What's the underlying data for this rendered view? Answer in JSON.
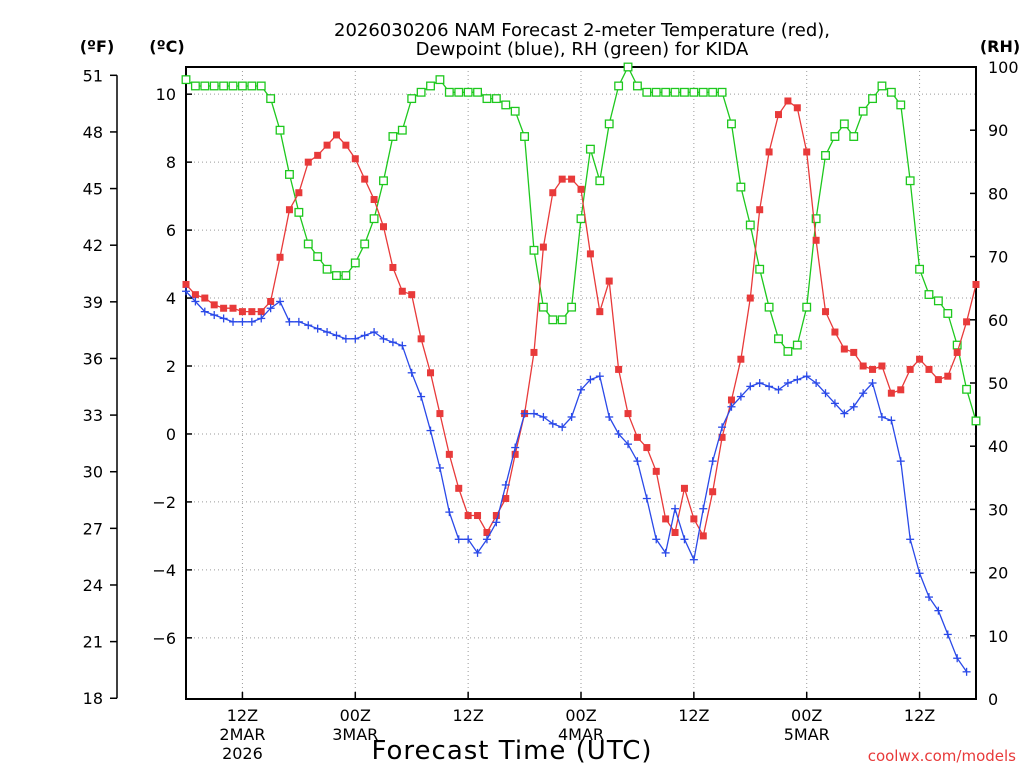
{
  "title": {
    "line1": "2026030206 NAM Forecast 2-meter Temperature (red),",
    "line2": "Dewpoint (blue), RH (green) for KIDA"
  },
  "unit_labels": {
    "f": "(ºF)",
    "c": "(ºC)",
    "rh": "(RH)"
  },
  "credit": "coolwx.com/models",
  "colors": {
    "temperature": "#e83a3a",
    "dewpoint": "#2a49e8",
    "rh": "#1ec81e"
  },
  "chart_data": {
    "type": "line",
    "title": "2026030206 NAM Forecast 2-meter Temperature (red), Dewpoint (blue), RH (green) for KIDA",
    "xlabel": "Forecast Time (UTC)",
    "x_unit": "hours since 2026-03-02 06Z",
    "xlim": [
      0,
      84
    ],
    "x_ticks": [
      {
        "x": 6,
        "label": "12Z",
        "sub": [
          "2MAR",
          "2026"
        ]
      },
      {
        "x": 18,
        "label": "00Z",
        "sub": [
          "3MAR"
        ]
      },
      {
        "x": 30,
        "label": "12Z",
        "sub": []
      },
      {
        "x": 42,
        "label": "00Z",
        "sub": [
          "4MAR"
        ]
      },
      {
        "x": 54,
        "label": "12Z",
        "sub": []
      },
      {
        "x": 66,
        "label": "00Z",
        "sub": [
          "5MAR"
        ]
      },
      {
        "x": 78,
        "label": "12Z",
        "sub": []
      }
    ],
    "y_left": {
      "unit": "°C",
      "lim": [
        -7.8,
        10.8
      ],
      "ticks": [
        -6,
        -4,
        -2,
        0,
        2,
        4,
        6,
        8,
        10
      ],
      "tick_labels": [
        "−6",
        "−4",
        "−2",
        "0",
        "2",
        "4",
        "6",
        "8",
        "10"
      ]
    },
    "y_far_left": {
      "unit": "°F",
      "ticks": [
        18,
        21,
        24,
        27,
        30,
        33,
        36,
        39,
        42,
        45,
        48,
        51
      ]
    },
    "y_right": {
      "unit": "RH %",
      "lim": [
        0,
        100
      ],
      "ticks": [
        0,
        10,
        20,
        30,
        40,
        50,
        60,
        70,
        80,
        90,
        100
      ]
    },
    "grid": true,
    "series": [
      {
        "name": "Temperature",
        "axis": "left",
        "marker": "filled-square",
        "values": [
          4.4,
          4.1,
          4.0,
          3.8,
          3.7,
          3.7,
          3.6,
          3.6,
          3.6,
          3.9,
          5.2,
          6.6,
          7.1,
          8.0,
          8.2,
          8.5,
          8.8,
          8.5,
          8.1,
          7.5,
          6.9,
          6.1,
          4.9,
          4.2,
          4.1,
          2.8,
          1.8,
          0.6,
          -0.6,
          -1.6,
          -2.4,
          -2.4,
          -2.9,
          -2.4,
          -1.9,
          -0.6,
          0.6,
          2.4,
          5.5,
          7.1,
          7.5,
          7.5,
          7.2,
          5.3,
          3.6,
          4.5,
          1.9,
          0.6,
          -0.1,
          -0.4,
          -1.1,
          -2.5,
          -2.9,
          -1.6,
          -2.5,
          -3.0,
          -1.7,
          -0.1,
          1.0,
          2.2,
          4.0,
          6.6,
          8.3,
          9.4,
          9.8,
          9.6,
          8.3,
          5.7,
          3.6,
          3.0,
          2.5,
          2.4,
          2.0,
          1.9,
          2.0,
          1.2,
          1.3,
          1.9,
          2.2,
          1.9,
          1.6,
          1.7,
          2.4,
          3.3,
          4.4
        ],
        "marker_every": 1
      },
      {
        "name": "Dewpoint",
        "axis": "left",
        "marker": "plus",
        "values": [
          4.2,
          3.9,
          3.6,
          3.5,
          3.4,
          3.3,
          3.3,
          3.3,
          3.4,
          3.7,
          3.9,
          3.3,
          3.3,
          3.2,
          3.1,
          3.0,
          2.9,
          2.8,
          2.8,
          2.9,
          3.0,
          2.8,
          2.7,
          2.6,
          1.8,
          1.1,
          0.1,
          -1.0,
          -2.3,
          -3.1,
          -3.1,
          -3.5,
          -3.1,
          -2.6,
          -1.5,
          -0.4,
          0.6,
          0.6,
          0.5,
          0.3,
          0.2,
          0.5,
          1.3,
          1.6,
          1.7,
          0.5,
          0.0,
          -0.3,
          -0.8,
          -1.9,
          -3.1,
          -3.5,
          -2.2,
          -3.1,
          -3.7,
          -2.2,
          -0.8,
          0.2,
          0.8,
          1.1,
          1.4,
          1.5,
          1.4,
          1.3,
          1.5,
          1.6,
          1.7,
          1.5,
          1.2,
          0.9,
          0.6,
          0.8,
          1.2,
          1.5,
          0.5,
          0.4,
          -0.8,
          -3.1,
          -4.1,
          -4.8,
          -5.2,
          -5.9,
          -6.6,
          -7.0
        ],
        "marker_every": 1
      },
      {
        "name": "RH",
        "axis": "right",
        "marker": "open-square",
        "values": [
          98,
          97,
          97,
          97,
          97,
          97,
          97,
          97,
          97,
          95,
          90,
          83,
          77,
          72,
          70,
          68,
          67,
          67,
          69,
          72,
          76,
          82,
          89,
          90,
          95,
          96,
          97,
          98,
          96,
          96,
          96,
          96,
          95,
          95,
          94,
          93,
          89,
          71,
          62,
          60,
          60,
          62,
          76,
          87,
          82,
          91,
          97,
          100,
          97,
          96,
          96,
          96,
          96,
          96,
          96,
          96,
          96,
          96,
          91,
          81,
          75,
          68,
          62,
          57,
          55,
          56,
          62,
          76,
          86,
          89,
          91,
          89,
          93,
          95,
          97,
          96,
          94,
          82,
          68,
          64,
          63,
          61,
          56,
          49,
          44
        ],
        "marker_every": 1
      }
    ]
  }
}
